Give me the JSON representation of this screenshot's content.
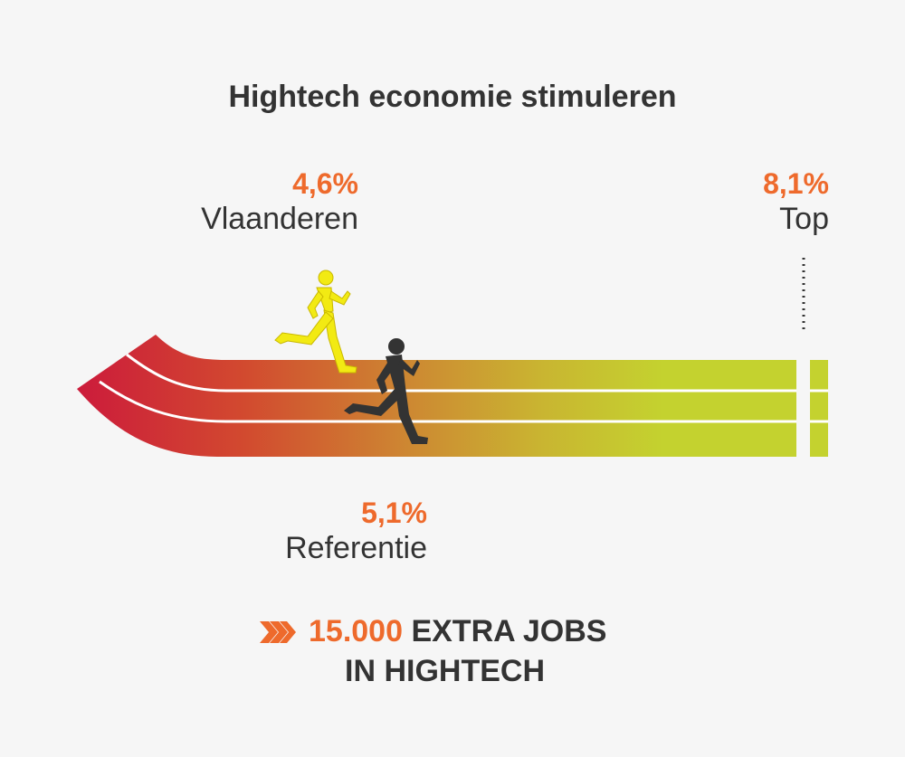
{
  "title": "Hightech economie stimuleren",
  "markers": {
    "vlaanderen": {
      "value": "4,6%",
      "label": "Vlaanderen"
    },
    "top": {
      "value": "8,1%",
      "label": "Top"
    },
    "referentie": {
      "value": "5,1%",
      "label": "Referentie"
    }
  },
  "footer": {
    "number": "15.000",
    "text1": "EXTRA JOBS",
    "text2": "IN HIGHTECH"
  },
  "colors": {
    "accent": "#ee6a2c",
    "text": "#333333",
    "track_start": "#cc1b3b",
    "track_end": "#c4d22f",
    "runner_vlaanderen": "#f2ea13",
    "runner_referentie": "#333333"
  },
  "icons": [
    "runner-icon",
    "chevron-arrows-icon"
  ]
}
